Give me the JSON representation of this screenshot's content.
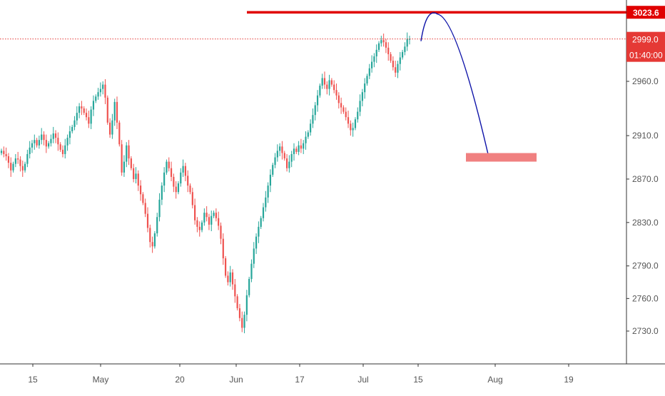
{
  "chart_data": {
    "type": "candlestick",
    "title": "",
    "xlabel": "",
    "ylabel": "",
    "y_axis_side": "right",
    "ylim": [
      2702,
      3041
    ],
    "y_ticks": [
      2730.0,
      2760.0,
      2790.0,
      2830.0,
      2870.0,
      2910.0,
      2960.0
    ],
    "y_tick_labels": [
      "2730.0",
      "2760.0",
      "2790.0",
      "2830.0",
      "2870.0",
      "2910.0",
      "2960.0"
    ],
    "x_tick_labels": [
      "15",
      "May",
      "20",
      "Jun",
      "17",
      "Jul",
      "15",
      "Aug",
      "19"
    ],
    "colors": {
      "up": "#26a69a",
      "down": "#ef5350",
      "price_line": "#e53935",
      "resistance": "#e00000",
      "projection": "#0d12a8",
      "target_box": "#f08080",
      "axis_text": "#555555",
      "axis_line": "#333333"
    },
    "candles_close": [
      2896,
      2893,
      2891,
      2885,
      2878,
      2884,
      2889,
      2888,
      2882,
      2878,
      2884,
      2893,
      2899,
      2903,
      2906,
      2901,
      2906,
      2911,
      2906,
      2900,
      2903,
      2907,
      2912,
      2908,
      2902,
      2897,
      2893,
      2901,
      2908,
      2914,
      2918,
      2924,
      2931,
      2937,
      2935,
      2931,
      2927,
      2921,
      2934,
      2942,
      2946,
      2950,
      2953,
      2957,
      2945,
      2922,
      2911,
      2924,
      2941,
      2922,
      2902,
      2876,
      2886,
      2901,
      2889,
      2880,
      2870,
      2875,
      2864,
      2856,
      2848,
      2838,
      2825,
      2812,
      2808,
      2820,
      2835,
      2851,
      2864,
      2876,
      2886,
      2880,
      2872,
      2863,
      2858,
      2866,
      2876,
      2882,
      2873,
      2864,
      2858,
      2846,
      2832,
      2826,
      2823,
      2830,
      2839,
      2835,
      2828,
      2836,
      2839,
      2834,
      2827,
      2815,
      2797,
      2781,
      2775,
      2784,
      2773,
      2762,
      2751,
      2742,
      2733,
      2745,
      2763,
      2778,
      2792,
      2806,
      2817,
      2826,
      2834,
      2844,
      2853,
      2864,
      2874,
      2883,
      2890,
      2896,
      2900,
      2894,
      2889,
      2880,
      2886,
      2893,
      2898,
      2895,
      2901,
      2898,
      2903,
      2909,
      2913,
      2921,
      2929,
      2938,
      2947,
      2956,
      2963,
      2957,
      2953,
      2961,
      2957,
      2952,
      2947,
      2940,
      2936,
      2932,
      2927,
      2921,
      2915,
      2917,
      2925,
      2932,
      2942,
      2950,
      2958,
      2965,
      2972,
      2978,
      2983,
      2989,
      2995,
      2998,
      2996,
      2991,
      2985,
      2979,
      2973,
      2968,
      2976,
      2982,
      2987,
      2992,
      2999,
      2999
    ],
    "price_line": {
      "value": 2999.0,
      "label": "2999.0",
      "countdown": "01:40:00"
    },
    "resistance_line": {
      "value": 3023.6,
      "label": "3023.6",
      "from": "Jun 03",
      "to": "right edge"
    },
    "projection_curve": {
      "from": {
        "date": "Jul 15",
        "value": 2997
      },
      "peak": {
        "date": "Jul 19",
        "value": 3022
      },
      "to": {
        "date": "Jul 30",
        "value": 2893
      }
    },
    "target_zone": {
      "value": 2890,
      "from": "Jul 25",
      "to": "Aug 09"
    }
  }
}
